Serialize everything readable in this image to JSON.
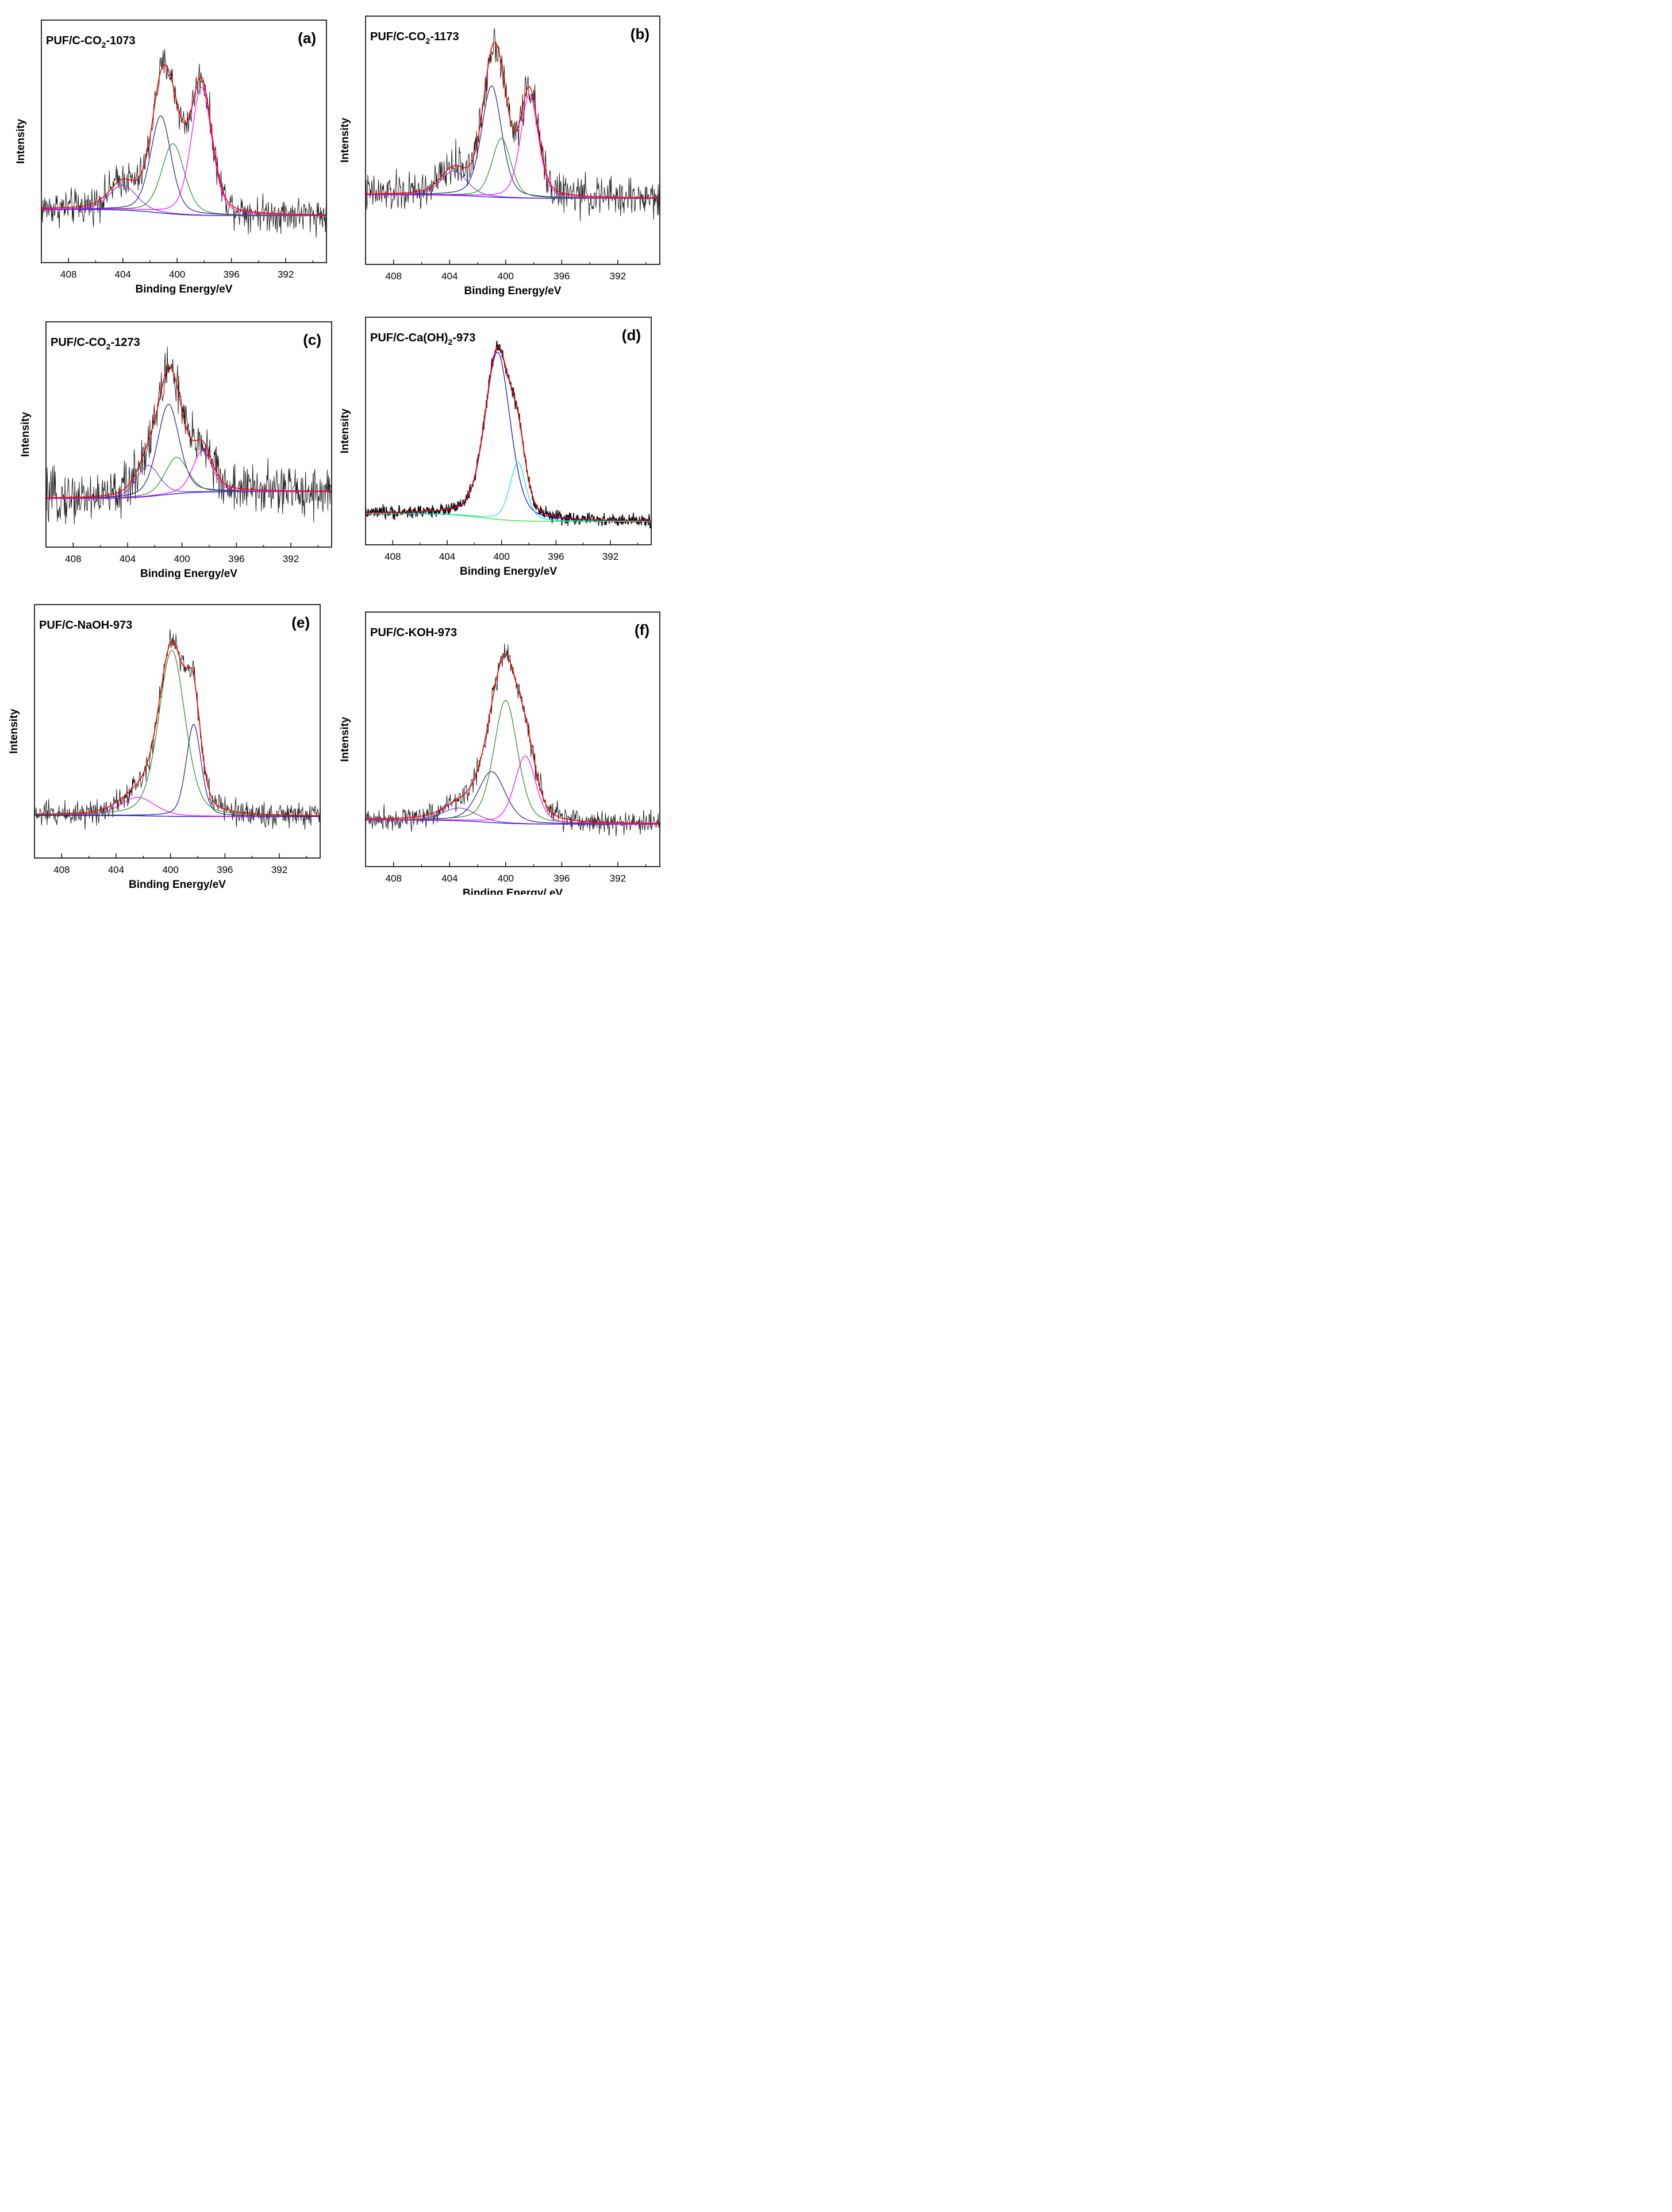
{
  "figure": {
    "subscript_two": "2"
  },
  "chart_data": [
    {
      "type": "line",
      "panel_label": "(a)",
      "sample_label": {
        "prefix": "PUF/C-CO",
        "sub": "2",
        "suffix": "-1073"
      },
      "xlabel": "Binding Energy/eV",
      "ylabel": "Intensity",
      "xlim": [
        410,
        389
      ],
      "xticks": [
        "408",
        "404",
        "400",
        "396",
        "392"
      ],
      "noise": 0.07,
      "peaks": [
        {
          "name": "fit-1",
          "color": "#8a2be2",
          "center": 404.0,
          "height": 0.16,
          "fwhm": 2.4
        },
        {
          "name": "fit-2",
          "color": "#1a1a8c",
          "center": 401.2,
          "height": 0.62,
          "fwhm": 1.8
        },
        {
          "name": "fit-3",
          "color": "#1e8c1e",
          "center": 400.3,
          "height": 0.45,
          "fwhm": 2.0
        },
        {
          "name": "fit-4",
          "color": "#ff00ff",
          "center": 398.2,
          "height": 0.82,
          "fwhm": 1.8
        }
      ],
      "background": [
        0.04,
        0.0
      ],
      "ylim": [
        -0.3,
        1.25
      ],
      "envelope_color": "#ff0000",
      "baseline_color": "#0000ff"
    },
    {
      "type": "line",
      "panel_label": "(b)",
      "sample_label": {
        "prefix": "PUF/C-CO",
        "sub": "2",
        "suffix": "-1173"
      },
      "xlabel": "Binding Energy/eV",
      "ylabel": "Intensity",
      "xlim": [
        410,
        389
      ],
      "xticks": [
        "408",
        "404",
        "400",
        "396",
        "392"
      ],
      "noise": 0.07,
      "peaks": [
        {
          "name": "fit-1",
          "color": "#8a2be2",
          "center": 403.7,
          "height": 0.14,
          "fwhm": 2.2
        },
        {
          "name": "fit-2",
          "color": "#1a1a8c",
          "center": 401.0,
          "height": 0.64,
          "fwhm": 1.7
        },
        {
          "name": "fit-3",
          "color": "#1e8c1e",
          "center": 400.3,
          "height": 0.34,
          "fwhm": 1.6
        },
        {
          "name": "fit-4",
          "color": "#ff00ff",
          "center": 398.3,
          "height": 0.6,
          "fwhm": 1.5
        }
      ],
      "background": [
        0.02,
        0.0
      ],
      "ylim": [
        -0.38,
        1.05
      ],
      "envelope_color": "#ff0000",
      "baseline_color": "#0000ff"
    },
    {
      "type": "line",
      "panel_label": "(c)",
      "sample_label": {
        "prefix": "PUF/C-CO",
        "sub": "2",
        "suffix": "-1273"
      },
      "xlabel": "Binding Energy/eV",
      "ylabel": "Intensity",
      "xlim": [
        410,
        389
      ],
      "xticks": [
        "408",
        "404",
        "400",
        "396",
        "392"
      ],
      "noise": 0.09,
      "peaks": [
        {
          "name": "fit-1",
          "color": "#8a2be2",
          "center": 402.5,
          "height": 0.18,
          "fwhm": 2.0
        },
        {
          "name": "fit-2",
          "color": "#1a1a8c",
          "center": 401.0,
          "height": 0.52,
          "fwhm": 1.9
        },
        {
          "name": "fit-3",
          "color": "#1e8c1e",
          "center": 400.4,
          "height": 0.21,
          "fwhm": 2.0
        },
        {
          "name": "fit-4",
          "color": "#ff00ff",
          "center": 398.5,
          "height": 0.24,
          "fwhm": 1.7
        }
      ],
      "background": [
        -0.02,
        0.02
      ],
      "ylim": [
        -0.3,
        1.0
      ],
      "envelope_color": "#ff0000",
      "baseline_color": "#0000ff"
    },
    {
      "type": "line",
      "panel_label": "(d)",
      "sample_label": {
        "prefix": "PUF/C-Ca(OH)",
        "sub": "2",
        "suffix": "-973"
      },
      "xlabel": "Binding Energy/eV",
      "ylabel": "Intensity",
      "xlim": [
        410,
        389
      ],
      "xticks": [
        "408",
        "404",
        "400",
        "396",
        "392"
      ],
      "noise": 0.02,
      "peaks": [
        {
          "name": "fit-1",
          "color": "#0000dd",
          "center": 400.3,
          "height": 0.86,
          "fwhm": 2.2
        },
        {
          "name": "fit-2",
          "color": "#00e5ee",
          "center": 398.8,
          "height": 0.3,
          "fwhm": 1.4
        }
      ],
      "background": [
        0.04,
        0.0
      ],
      "ylim": [
        -0.12,
        1.05
      ],
      "envelope_color": "#ff0000",
      "baseline_color": "#22dd22"
    },
    {
      "type": "line",
      "panel_label": "(e)",
      "sample_label": {
        "prefix": "PUF/C-NaOH-973",
        "sub": "",
        "suffix": ""
      },
      "xlabel": "Binding Energy/eV",
      "ylabel": "Intensity",
      "xlim": [
        410,
        389
      ],
      "xticks": [
        "408",
        "404",
        "400",
        "396",
        "392"
      ],
      "noise": 0.035,
      "peaks": [
        {
          "name": "fit-1",
          "color": "#ff00ff",
          "center": 402.4,
          "height": 0.08,
          "fwhm": 3.0
        },
        {
          "name": "fit-2",
          "color": "#1e8c1e",
          "center": 399.9,
          "height": 0.72,
          "fwhm": 2.3
        },
        {
          "name": "fit-3",
          "color": "#1a1a8c",
          "center": 398.3,
          "height": 0.4,
          "fwhm": 1.3
        }
      ],
      "background": [
        0.005,
        0.0
      ],
      "ylim": [
        -0.18,
        0.92
      ],
      "envelope_color": "#ff0000",
      "baseline_color": "#0000ff"
    },
    {
      "type": "line",
      "panel_label": "(f)",
      "sample_label": {
        "prefix": "PUF/C-KOH-973",
        "sub": "",
        "suffix": ""
      },
      "xlabel": "Binding Energy/ eV",
      "ylabel": "Intensity",
      "xlim": [
        410,
        389
      ],
      "xticks": [
        "408",
        "404",
        "400",
        "396",
        "392"
      ],
      "noise": 0.035,
      "peaks": [
        {
          "name": "fit-1",
          "color": "#8a2be2",
          "center": 403.3,
          "height": 0.06,
          "fwhm": 2.8
        },
        {
          "name": "fit-2",
          "color": "#1a1a8c",
          "center": 401.0,
          "height": 0.24,
          "fwhm": 2.3
        },
        {
          "name": "fit-3",
          "color": "#1e8c1e",
          "center": 400.0,
          "height": 0.58,
          "fwhm": 2.0
        },
        {
          "name": "fit-4",
          "color": "#ff00ff",
          "center": 398.6,
          "height": 0.32,
          "fwhm": 1.8
        }
      ],
      "background": [
        0.02,
        0.0
      ],
      "ylim": [
        -0.2,
        1.0
      ],
      "envelope_color": "#ff0000",
      "baseline_color": "#0000ff"
    }
  ]
}
